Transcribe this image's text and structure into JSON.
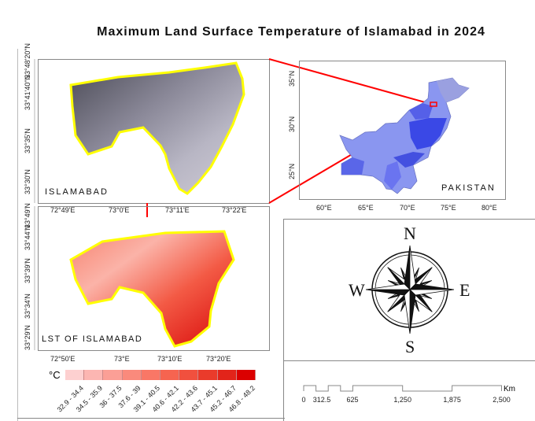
{
  "title": "Maximum Land Surface Temperature of Islamabad in 2024",
  "islamabad_map": {
    "label": "ISLAMABAD",
    "x_ticks": [
      "72°49'E",
      "73°0'E",
      "73°11'E",
      "73°22'E"
    ],
    "y_ticks": [
      "33°30'N",
      "33°35'N",
      "33°41'40\"N",
      "33°48'20\"N"
    ]
  },
  "pakistan_map": {
    "label": "PAKISTAN",
    "x_ticks": [
      "60°E",
      "65°E",
      "70°E",
      "75°E",
      "80°E"
    ],
    "y_ticks": [
      "25°N",
      "30°N",
      "35°N"
    ]
  },
  "lst_map": {
    "label": "LST OF ISLAMABAD",
    "x_ticks": [
      "72°50'E",
      "73°E",
      "73°10'E",
      "73°20'E"
    ],
    "y_ticks": [
      "33°29'N",
      "33°34'N",
      "33°39'N",
      "33°44'N",
      "33°49'N"
    ]
  },
  "legend": {
    "unit": "°C",
    "classes": [
      {
        "label": "32.9 - 34.4",
        "color": "#fdd0d0"
      },
      {
        "label": "34.5 - 35.9",
        "color": "#fcb6b2"
      },
      {
        "label": "36 - 37.5",
        "color": "#fb9f96"
      },
      {
        "label": "37.6 - 39",
        "color": "#fa8a7c"
      },
      {
        "label": "39.1 - 40.5",
        "color": "#f97766"
      },
      {
        "label": "40.6 - 42.1",
        "color": "#f66450"
      },
      {
        "label": "42.2 - 43.6",
        "color": "#f1503e"
      },
      {
        "label": "43.7 - 45.1",
        "color": "#ea3b2b"
      },
      {
        "label": "45.2 - 46.7",
        "color": "#e2241a"
      },
      {
        "label": "46.8 - 48.2",
        "color": "#db0000"
      }
    ]
  },
  "compass": {
    "n": "N",
    "e": "E",
    "s": "S",
    "w": "W"
  },
  "scale_bar": {
    "unit": "Km",
    "labels": [
      "0",
      "312.5",
      "625",
      "1,250",
      "1,875",
      "2,500"
    ]
  },
  "colors": {
    "boundary": "#ffff00",
    "inset_line": "#ff0000"
  }
}
